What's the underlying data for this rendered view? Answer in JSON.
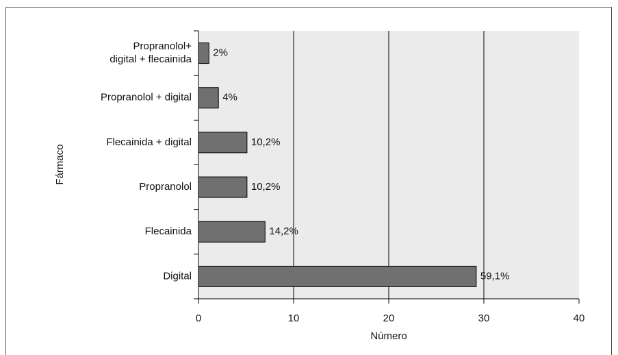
{
  "chart_data": {
    "type": "barh",
    "categories": [
      "Digital",
      "Flecainida",
      "Propranolol",
      "Flecainida + digital",
      "Propranolol + digital",
      [
        "Propranolol+",
        "digital + flecainida"
      ]
    ],
    "values": [
      29.2,
      7,
      5.1,
      5.1,
      2.1,
      1.1
    ],
    "annotations": [
      "59,1%",
      "14,2%",
      "10,2%",
      "10,2%",
      "4%",
      "2%"
    ],
    "color": "#707070",
    "xlabel": "Número",
    "ylabel": "Fármaco",
    "xlim": [
      0,
      40
    ],
    "xticks": [
      0,
      10,
      20,
      30,
      40
    ],
    "grid": true
  }
}
